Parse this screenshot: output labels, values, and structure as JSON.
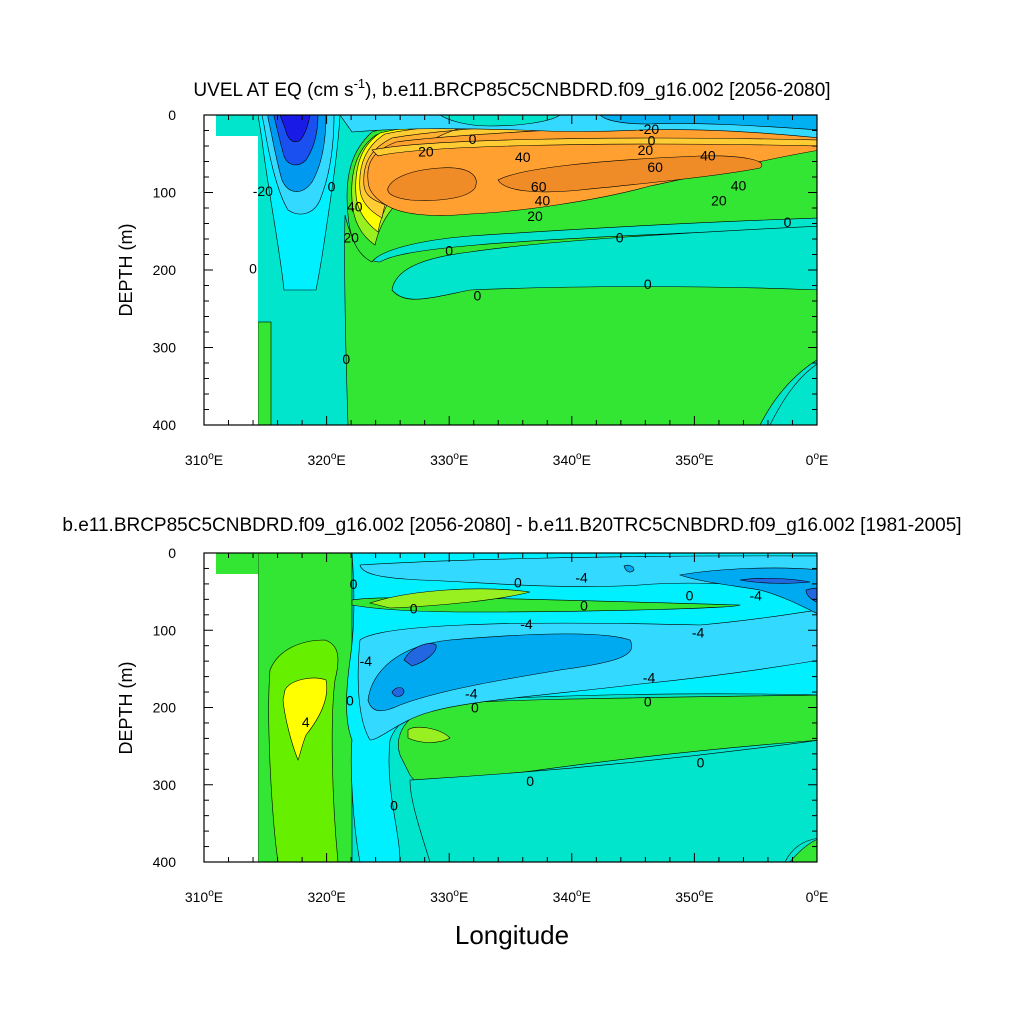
{
  "chart_data": [
    {
      "type": "contour",
      "title_main": "UVEL AT EQ (cm s",
      "title_exp": "-1",
      "title_rest": "), b.e11.BRCP85C5CNBDRD.f09_g16.002 [2056-2080]",
      "ylabel": "DEPTH (m)",
      "xlim": [
        310,
        360
      ],
      "ylim": [
        0,
        400
      ],
      "yticks": [
        0,
        100,
        200,
        300,
        400
      ],
      "xticks": [
        {
          "value": 310,
          "deg": "310",
          "suffix": "E"
        },
        {
          "value": 320,
          "deg": "320",
          "suffix": "E"
        },
        {
          "value": 330,
          "deg": "330",
          "suffix": "E"
        },
        {
          "value": 340,
          "deg": "340",
          "suffix": "E"
        },
        {
          "value": 350,
          "deg": "350",
          "suffix": "E"
        },
        {
          "value": 360,
          "deg": "0",
          "suffix": "E"
        }
      ],
      "contour_labels": [
        {
          "text": "-20",
          "lon": 346.3,
          "depth": 18
        },
        {
          "text": "0",
          "lon": 331.9,
          "depth": 31
        },
        {
          "text": "0",
          "lon": 346.5,
          "depth": 33
        },
        {
          "text": "20",
          "lon": 328.1,
          "depth": 47
        },
        {
          "text": "20",
          "lon": 346.0,
          "depth": 45
        },
        {
          "text": "40",
          "lon": 336.0,
          "depth": 54
        },
        {
          "text": "40",
          "lon": 351.1,
          "depth": 52
        },
        {
          "text": "60",
          "lon": 346.8,
          "depth": 67
        },
        {
          "text": "60",
          "lon": 337.3,
          "depth": 92
        },
        {
          "text": "40",
          "lon": 353.6,
          "depth": 91
        },
        {
          "text": "40",
          "lon": 337.6,
          "depth": 110
        },
        {
          "text": "20",
          "lon": 352.0,
          "depth": 110
        },
        {
          "text": "20",
          "lon": 337.0,
          "depth": 130
        },
        {
          "text": "-20",
          "lon": 314.8,
          "depth": 98
        },
        {
          "text": "0",
          "lon": 320.4,
          "depth": 92
        },
        {
          "text": "40",
          "lon": 322.3,
          "depth": 118
        },
        {
          "text": "20",
          "lon": 322.0,
          "depth": 158
        },
        {
          "text": "0",
          "lon": 330.0,
          "depth": 175
        },
        {
          "text": "0",
          "lon": 343.9,
          "depth": 158
        },
        {
          "text": "0",
          "lon": 357.6,
          "depth": 138
        },
        {
          "text": "0",
          "lon": 314.0,
          "depth": 198
        },
        {
          "text": "0",
          "lon": 332.3,
          "depth": 233
        },
        {
          "text": "0",
          "lon": 346.2,
          "depth": 218
        },
        {
          "text": "0",
          "lon": 321.6,
          "depth": 315
        }
      ]
    },
    {
      "type": "contour",
      "title": "b.e11.BRCP85C5CNBDRD.f09_g16.002 [2056-2080] - b.e11.B20TRC5CNBDRD.f09_g16.002 [1981-2005]",
      "ylabel": "DEPTH (m)",
      "xlabel": "Longitude",
      "xlim": [
        310,
        360
      ],
      "ylim": [
        0,
        400
      ],
      "yticks": [
        0,
        100,
        200,
        300,
        400
      ],
      "xticks": [
        {
          "value": 310,
          "deg": "310",
          "suffix": "E"
        },
        {
          "value": 320,
          "deg": "320",
          "suffix": "E"
        },
        {
          "value": 330,
          "deg": "330",
          "suffix": "E"
        },
        {
          "value": 340,
          "deg": "340",
          "suffix": "E"
        },
        {
          "value": 350,
          "deg": "350",
          "suffix": "E"
        },
        {
          "value": 360,
          "deg": "0",
          "suffix": "E"
        }
      ],
      "contour_labels": [
        {
          "text": "0",
          "lon": 322.2,
          "depth": 40
        },
        {
          "text": "0",
          "lon": 335.6,
          "depth": 38
        },
        {
          "text": "-4",
          "lon": 340.8,
          "depth": 32
        },
        {
          "text": "0",
          "lon": 349.6,
          "depth": 55
        },
        {
          "text": "-4",
          "lon": 355.0,
          "depth": 55
        },
        {
          "text": "0",
          "lon": 327.1,
          "depth": 72
        },
        {
          "text": "0",
          "lon": 341.0,
          "depth": 68
        },
        {
          "text": "-4",
          "lon": 336.3,
          "depth": 92
        },
        {
          "text": "-4",
          "lon": 350.3,
          "depth": 103
        },
        {
          "text": "-4",
          "lon": 323.2,
          "depth": 140
        },
        {
          "text": "-4",
          "lon": 346.3,
          "depth": 161
        },
        {
          "text": "-4",
          "lon": 331.8,
          "depth": 182
        },
        {
          "text": "0",
          "lon": 321.9,
          "depth": 191
        },
        {
          "text": "0",
          "lon": 332.1,
          "depth": 200
        },
        {
          "text": "0",
          "lon": 346.2,
          "depth": 192
        },
        {
          "text": "4",
          "lon": 318.3,
          "depth": 219
        },
        {
          "text": "0",
          "lon": 350.5,
          "depth": 271
        },
        {
          "text": "0",
          "lon": 336.6,
          "depth": 295
        },
        {
          "text": "0",
          "lon": 325.5,
          "depth": 327
        }
      ]
    }
  ]
}
